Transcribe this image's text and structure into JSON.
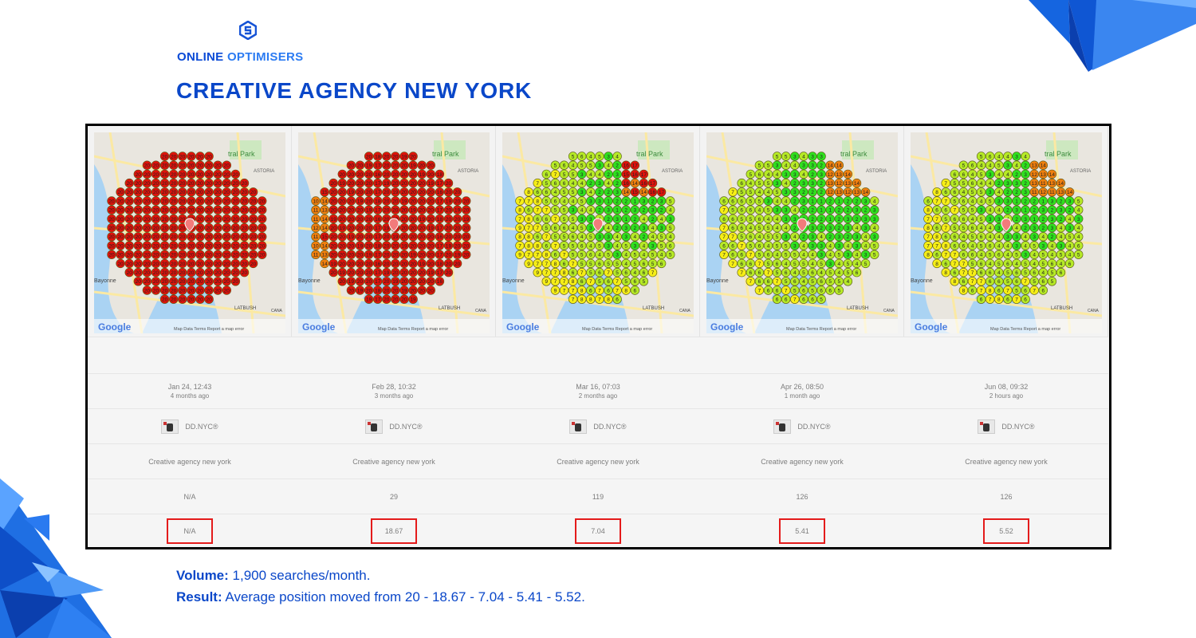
{
  "brand": {
    "word1": "ONLINE",
    "word2": "OPTIMISERS"
  },
  "title": "CREATIVE AGENCY NEW YORK",
  "colors": {
    "brand_blue": "#0a47c9",
    "highlight": "#e41b1b",
    "rank_red": "#e0120b",
    "rank_orange": "#f07f0e",
    "rank_yellow": "#f6ee16",
    "rank_lime": "#b6ea26",
    "rank_green": "#2fe01e"
  },
  "map_labels": {
    "park": "tral Park",
    "astoria": "ASTORIA",
    "bayonne": "Bayonne",
    "latbush": "LATBUSH",
    "cana": "CANA",
    "google": "Google",
    "footer": "Map Data   Terms   Report a map error"
  },
  "columns": [
    {
      "date": "Jan 24, 12:43",
      "ago": "4 months ago",
      "business": "DD.NYC®",
      "keyword": "Creative agency new york",
      "volume": "N/A",
      "avg": "N/A",
      "stage": 0
    },
    {
      "date": "Feb 28, 10:32",
      "ago": "3 months ago",
      "business": "DD.NYC®",
      "keyword": "Creative agency new york",
      "volume": "29",
      "avg": "18.67",
      "stage": 1
    },
    {
      "date": "Mar 16, 07:03",
      "ago": "2 months ago",
      "business": "DD.NYC®",
      "keyword": "Creative agency new york",
      "volume": "119",
      "avg": "7.04",
      "stage": 2
    },
    {
      "date": "Apr 26, 08:50",
      "ago": "1 month ago",
      "business": "DD.NYC®",
      "keyword": "Creative agency new york",
      "volume": "126",
      "avg": "5.41",
      "stage": 3
    },
    {
      "date": "Jun 08, 09:32",
      "ago": "2 hours ago",
      "business": "DD.NYC®",
      "keyword": "Creative agency new york",
      "volume": "126",
      "avg": "5.52",
      "stage": 4
    }
  ],
  "footer": {
    "volume_label": "Volume:",
    "volume_text": " 1,900 searches/month.",
    "result_label": "Result:",
    "result_text": " Average position moved from 20 - 18.67 - 7.04 - 5.41 - 5.52."
  }
}
